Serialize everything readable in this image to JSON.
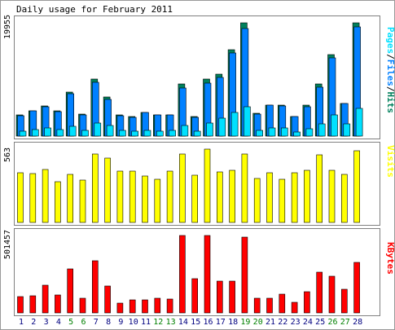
{
  "chart_data": {
    "type": "bar",
    "title": "Daily usage for February 2011",
    "categories": [
      "1",
      "2",
      "3",
      "4",
      "5",
      "6",
      "7",
      "8",
      "9",
      "10",
      "11",
      "12",
      "13",
      "14",
      "15",
      "16",
      "17",
      "18",
      "19",
      "20",
      "21",
      "22",
      "23",
      "24",
      "25",
      "26",
      "27",
      "28"
    ],
    "weekend_days": [
      "5",
      "6",
      "12",
      "13",
      "19",
      "20",
      "26",
      "27"
    ],
    "colors": {
      "hits": "#00805c",
      "files": "#0080ff",
      "pages": "#00e0ff",
      "visits": "#ffff00",
      "kbytes": "#ff0000",
      "weekend_label": "#008000",
      "weekday_label": "#000080"
    },
    "panels": [
      {
        "label": "Pages/Files/Hits",
        "label_parts": [
          {
            "text": "Pages",
            "color": "#00e0ff"
          },
          {
            "text": "/",
            "color": "#000000"
          },
          {
            "text": "Files",
            "color": "#0080ff"
          },
          {
            "text": "/",
            "color": "#000000"
          },
          {
            "text": "Hits",
            "color": "#00805c"
          }
        ],
        "max_tick": "19955",
        "ylim": [
          0,
          19955
        ],
        "series": [
          {
            "name": "Hits",
            "values": [
              3700,
              4500,
              5300,
              4400,
              7800,
              3900,
              10100,
              6900,
              3700,
              3400,
              4200,
              3800,
              3800,
              9200,
              3400,
              10000,
              10900,
              15200,
              19955,
              4000,
              5500,
              5400,
              3500,
              5400,
              9200,
              14300,
              5800,
              19955
            ]
          },
          {
            "name": "Files",
            "values": [
              3600,
              4400,
              5200,
              4300,
              7400,
              3800,
              9500,
              6500,
              3600,
              3300,
              4100,
              3700,
              3700,
              8500,
              3300,
              9300,
              10400,
              14700,
              18900,
              3900,
              5400,
              5300,
              3400,
              5200,
              8600,
              13800,
              5700,
              19300
            ]
          },
          {
            "name": "Pages",
            "values": [
              900,
              1100,
              1400,
              1200,
              1700,
              1000,
              2300,
              1800,
              1000,
              900,
              1000,
              900,
              1000,
              1900,
              900,
              2300,
              3100,
              4100,
              5200,
              1000,
              1500,
              1400,
              700,
              1300,
              2200,
              3800,
              2100,
              4900
            ]
          }
        ]
      },
      {
        "label": "Visits",
        "label_parts": [
          {
            "text": "Visits",
            "color": "#ffff00"
          }
        ],
        "max_tick": "563",
        "ylim": [
          0,
          563
        ],
        "series": [
          {
            "name": "Visits",
            "values": [
              383,
              377,
              407,
              314,
              368,
              325,
              523,
              496,
              395,
              397,
              356,
              329,
              391,
              523,
              361,
              563,
              390,
              400,
              523,
              337,
              380,
              332,
              380,
              403,
              522,
              401,
              372,
              550
            ]
          }
        ]
      },
      {
        "label": "KBytes",
        "label_parts": [
          {
            "text": "KBytes",
            "color": "#ff0000"
          }
        ],
        "max_tick": "501457",
        "ylim": [
          0,
          501457
        ],
        "series": [
          {
            "name": "KBytes",
            "values": [
              107000,
              110000,
              181000,
              114000,
              284000,
              95000,
              336000,
              176000,
              61000,
              87000,
              83000,
              93000,
              88000,
              501457,
              220000,
              501457,
              207000,
              204000,
              489000,
              96000,
              97000,
              123000,
              68000,
              138000,
              264000,
              238000,
              151000,
              328000
            ]
          }
        ]
      }
    ]
  }
}
